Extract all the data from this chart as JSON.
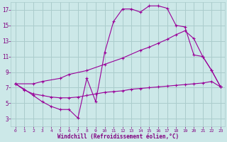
{
  "bg_color": "#cce8e8",
  "grid_color": "#aacccc",
  "line_color": "#990099",
  "xlabel": "Windchill (Refroidissement éolien,°C)",
  "xlabel_color": "#800080",
  "tick_color": "#800080",
  "xlim": [
    -0.5,
    23.5
  ],
  "ylim": [
    2,
    18
  ],
  "yticks": [
    3,
    5,
    7,
    9,
    11,
    13,
    15,
    17
  ],
  "xticks": [
    0,
    1,
    2,
    3,
    4,
    5,
    6,
    7,
    8,
    9,
    10,
    11,
    12,
    13,
    14,
    15,
    16,
    17,
    18,
    19,
    20,
    21,
    22,
    23
  ],
  "curve1_x": [
    0,
    1,
    2,
    3,
    4,
    5,
    6,
    7,
    8,
    9,
    10,
    11,
    12,
    13,
    14,
    15,
    16,
    17,
    18,
    19,
    20,
    21,
    22,
    23
  ],
  "curve1_y": [
    7.5,
    6.8,
    6.0,
    5.2,
    4.6,
    4.2,
    4.2,
    3.1,
    8.2,
    5.2,
    11.5,
    15.5,
    17.1,
    17.1,
    16.7,
    17.5,
    17.5,
    17.2,
    15.0,
    14.8,
    11.2,
    11.0,
    9.2,
    7.1
  ],
  "curve2_x": [
    0,
    1,
    2,
    3,
    4,
    5,
    6,
    7,
    8,
    9,
    10,
    11,
    12,
    13,
    14,
    15,
    16,
    17,
    18,
    19,
    20,
    21,
    22,
    23
  ],
  "curve2_y": [
    7.5,
    6.7,
    6.2,
    6.0,
    5.8,
    5.7,
    5.7,
    5.8,
    6.0,
    6.2,
    6.4,
    6.5,
    6.6,
    6.8,
    6.9,
    7.0,
    7.1,
    7.2,
    7.3,
    7.4,
    7.5,
    7.6,
    7.8,
    7.1
  ],
  "curve3_x": [
    0,
    2,
    3,
    5,
    6,
    8,
    10,
    12,
    14,
    15,
    16,
    17,
    18,
    19,
    20,
    21,
    22,
    23
  ],
  "curve3_y": [
    7.5,
    7.5,
    7.8,
    8.2,
    8.7,
    9.2,
    10.0,
    10.8,
    11.8,
    12.2,
    12.7,
    13.2,
    13.8,
    14.3,
    13.3,
    11.0,
    9.2,
    7.1
  ]
}
